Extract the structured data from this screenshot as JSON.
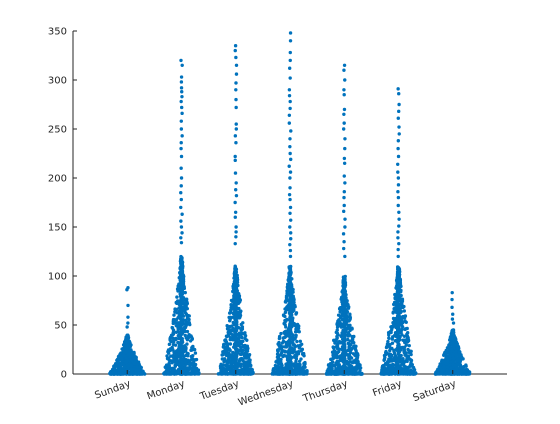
{
  "chart_data": {
    "type": "scatter",
    "title": "",
    "xlabel": "",
    "ylabel": "",
    "categories": [
      "Sunday",
      "Monday",
      "Tuesday",
      "Wednesday",
      "Thursday",
      "Friday",
      "Saturday"
    ],
    "ylim": [
      0,
      350
    ],
    "yticks": [
      0,
      50,
      100,
      150,
      200,
      250,
      300,
      350
    ],
    "ytick_labels": [
      "0",
      "50",
      "100",
      "150",
      "200",
      "250",
      "300",
      "350"
    ],
    "grid": false,
    "legend": "none",
    "marker_color": "#0072BD",
    "series": [
      {
        "category": "Sunday",
        "max": 88,
        "bulk_top": 40,
        "outliers": [
          88,
          86,
          70,
          58,
          52,
          48
        ]
      },
      {
        "category": "Monday",
        "max": 320,
        "bulk_top": 120,
        "outliers": [
          320,
          315,
          303,
          298,
          292,
          288,
          283,
          278,
          272,
          266,
          258,
          250,
          243,
          236,
          230,
          222,
          210,
          200,
          192,
          185,
          178,
          170,
          163,
          156,
          150,
          144,
          139,
          134
        ]
      },
      {
        "category": "Tuesday",
        "max": 335,
        "bulk_top": 110,
        "outliers": [
          335,
          330,
          323,
          315,
          306,
          297,
          290,
          280,
          272,
          255,
          250,
          243,
          236,
          222,
          218,
          205,
          195,
          188,
          182,
          175,
          165,
          160,
          150,
          145,
          140,
          133
        ]
      },
      {
        "category": "Wednesday",
        "max": 348,
        "bulk_top": 110,
        "outliers": [
          348,
          340,
          328,
          320,
          312,
          302,
          290,
          284,
          278,
          271,
          264,
          256,
          248,
          240,
          232,
          225,
          219,
          212,
          206,
          200,
          190,
          183,
          178,
          170,
          164,
          157,
          150,
          144,
          138,
          132,
          126,
          120
        ]
      },
      {
        "category": "Thursday",
        "max": 315,
        "bulk_top": 100,
        "outliers": [
          315,
          310,
          300,
          290,
          285,
          270,
          265,
          256,
          250,
          240,
          230,
          220,
          215,
          202,
          195,
          186,
          180,
          172,
          166,
          158,
          150,
          143,
          135,
          128,
          120
        ]
      },
      {
        "category": "Friday",
        "max": 291,
        "bulk_top": 110,
        "outliers": [
          291,
          286,
          275,
          268,
          261,
          252,
          245,
          238,
          230,
          222,
          214,
          206,
          200,
          193,
          186,
          180,
          172,
          165,
          158,
          151,
          145,
          139,
          133,
          127,
          120
        ]
      },
      {
        "category": "Saturday",
        "max": 83,
        "bulk_top": 45,
        "outliers": [
          83,
          76,
          68,
          61,
          56,
          52
        ]
      }
    ]
  }
}
